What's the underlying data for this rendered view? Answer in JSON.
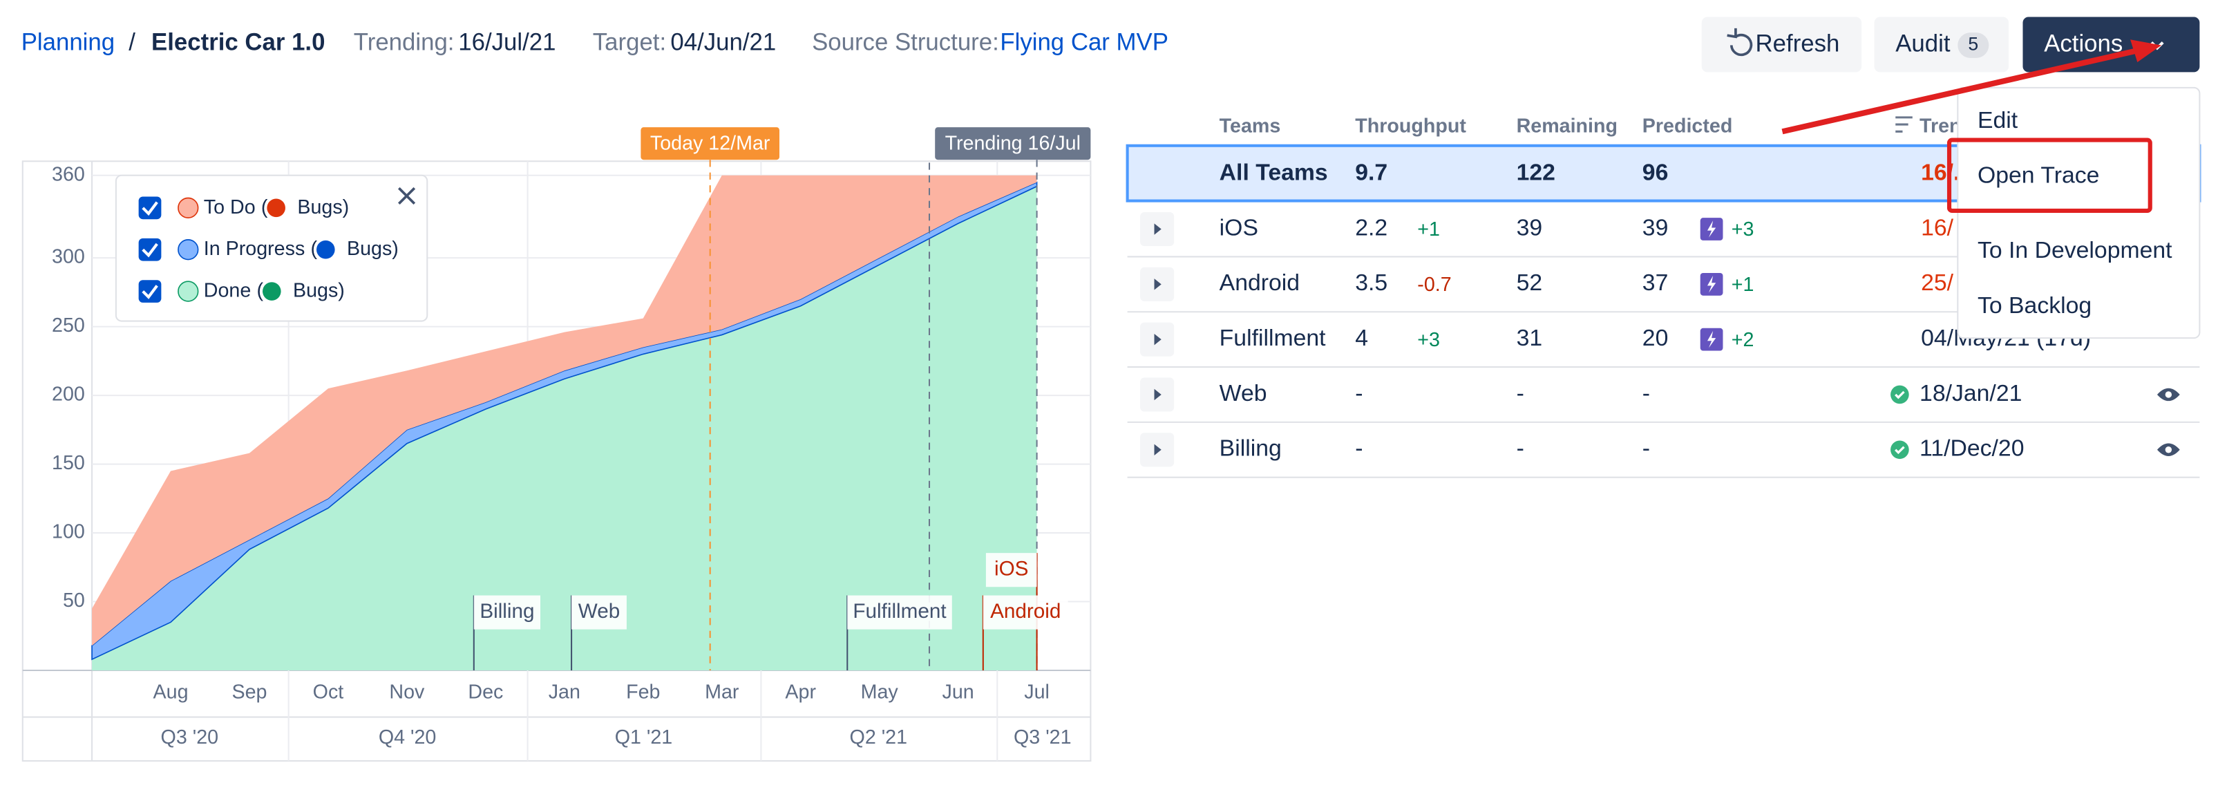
{
  "header": {
    "breadcrumb_root": "Planning",
    "separator": "/",
    "title": "Electric Car 1.0",
    "trending_label": "Trending:",
    "trending_value": "16/Jul/21",
    "target_label": "Target:",
    "target_value": "04/Jun/21",
    "source_label": "Source Structure:",
    "source_value": "Flying Car MVP",
    "buttons": {
      "refresh": "Refresh",
      "audit": "Audit",
      "audit_count": "5",
      "actions": "Actions"
    }
  },
  "chart_data": {
    "type": "area",
    "stacked": true,
    "categories": [
      null,
      "Aug",
      "Sep",
      "Oct",
      "Nov",
      "Dec",
      "Jan",
      "Feb",
      "Mar",
      "Apr",
      "May",
      "Jun",
      "Jul"
    ],
    "quarters": [
      "Q3 '20",
      "Q4 '20",
      "Q1 '21",
      "Q2 '21",
      "Q3 '21"
    ],
    "series": [
      {
        "name": "Done",
        "color": "#b3f0d6",
        "bug_color": "#0b9a63",
        "values": [
          8,
          35,
          88,
          118,
          165,
          190,
          212,
          230,
          244,
          265,
          295,
          325,
          352
        ]
      },
      {
        "name": "In Progress",
        "color": "#84b5ff",
        "bug_color": "#0052cc",
        "values": [
          10,
          30,
          7,
          7,
          10,
          5,
          6,
          5,
          4,
          5,
          5,
          5,
          3
        ]
      },
      {
        "name": "To Do",
        "color": "#fcb3a1",
        "bug_color": "#de350b",
        "values": [
          27,
          80,
          63,
          80,
          43,
          37,
          28,
          21,
          112,
          90,
          60,
          30,
          5
        ]
      }
    ],
    "legend_paren_open": "(",
    "legend_bugs": "Bugs)",
    "ylim": [
      0,
      360
    ],
    "yticks": [
      50,
      100,
      150,
      200,
      250,
      300,
      360
    ],
    "grid": true,
    "markers": [
      {
        "label": "Today 12/Mar",
        "color": "#f79232"
      },
      {
        "label": "Trending 16/Jul",
        "color": "#6b778c"
      }
    ],
    "milestones": [
      {
        "label": "Billing",
        "color": "#42526e"
      },
      {
        "label": "Web",
        "color": "#42526e"
      },
      {
        "label": "Fulfillment",
        "color": "#42526e"
      },
      {
        "label": "iOS",
        "color": "#bf2600"
      },
      {
        "label": "Android",
        "color": "#bf2600"
      }
    ]
  },
  "table": {
    "headers": [
      "Teams",
      "Throughput",
      "Remaining",
      "Predicted",
      "Tren"
    ],
    "rows": [
      {
        "team": "All Teams",
        "throughput": "9.7",
        "remaining": "122",
        "predicted": "96",
        "trend": "16/."
      },
      {
        "team": "iOS",
        "throughput": "2.2",
        "throughput_delta": "+1",
        "remaining": "39",
        "predicted": "39",
        "predicted_delta": "+3",
        "trend": "16/"
      },
      {
        "team": "Android",
        "throughput": "3.5",
        "throughput_delta": "-0.7",
        "remaining": "52",
        "predicted": "37",
        "predicted_delta": "+1",
        "trend": "25/"
      },
      {
        "team": "Fulfillment",
        "throughput": "4",
        "throughput_delta": "+3",
        "remaining": "31",
        "predicted": "20",
        "predicted_delta": "+2",
        "trend": "04/May/21 (17d)"
      },
      {
        "team": "Web",
        "throughput": "-",
        "remaining": "-",
        "predicted": "-",
        "trend": "18/Jan/21"
      },
      {
        "team": "Billing",
        "throughput": "-",
        "remaining": "-",
        "predicted": "-",
        "trend": "11/Dec/20"
      }
    ]
  },
  "menu": {
    "items": [
      "Edit",
      "Open Trace",
      "To In Development",
      "To Backlog"
    ]
  }
}
